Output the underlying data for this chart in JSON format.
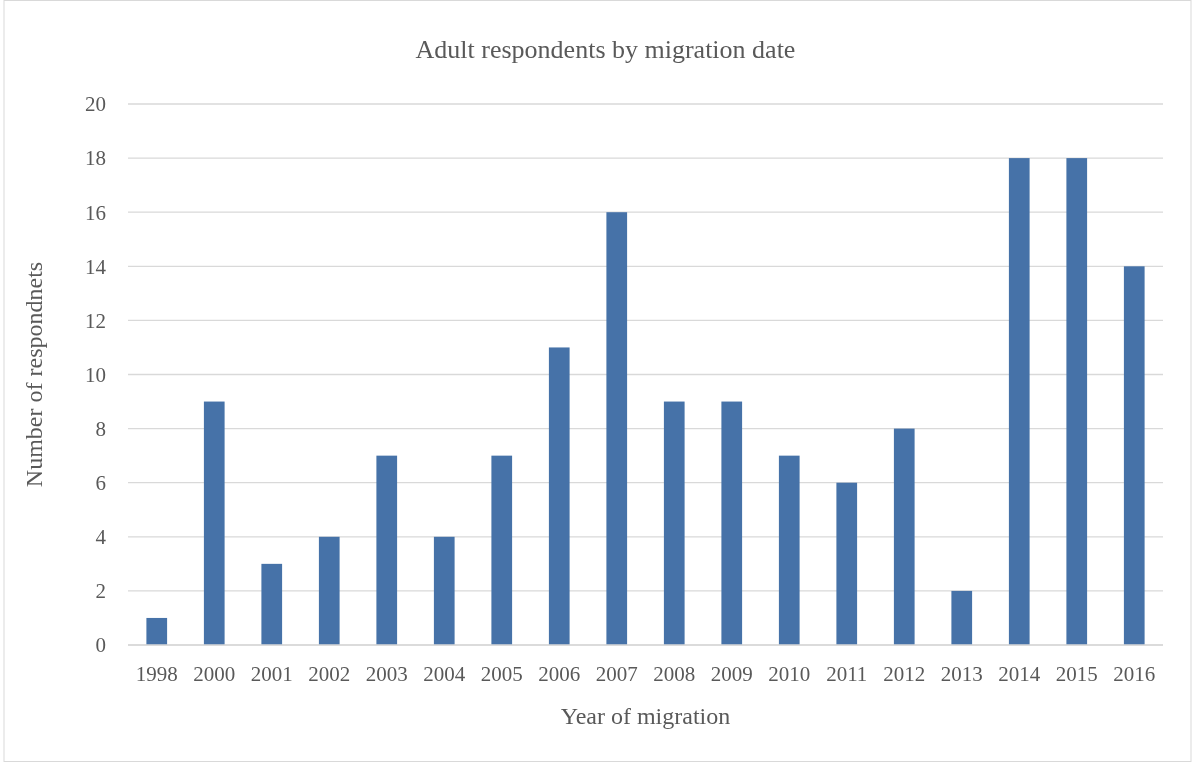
{
  "chart_data": {
    "type": "bar",
    "title": "Adult respondents by migration date",
    "xlabel": "Year of migration",
    "ylabel": "Number of respondnets",
    "categories": [
      "1998",
      "2000",
      "2001",
      "2002",
      "2003",
      "2004",
      "2005",
      "2006",
      "2007",
      "2008",
      "2009",
      "2010",
      "2011",
      "2012",
      "2013",
      "2014",
      "2015",
      "2016"
    ],
    "values": [
      1,
      9,
      3,
      4,
      7,
      4,
      7,
      11,
      16,
      9,
      9,
      7,
      6,
      8,
      2,
      18,
      18,
      14
    ],
    "color": "#4672a8",
    "ylim": [
      0,
      20
    ],
    "yticks": [
      0,
      2,
      4,
      6,
      8,
      10,
      12,
      14,
      16,
      18,
      20
    ],
    "grid": "y"
  }
}
